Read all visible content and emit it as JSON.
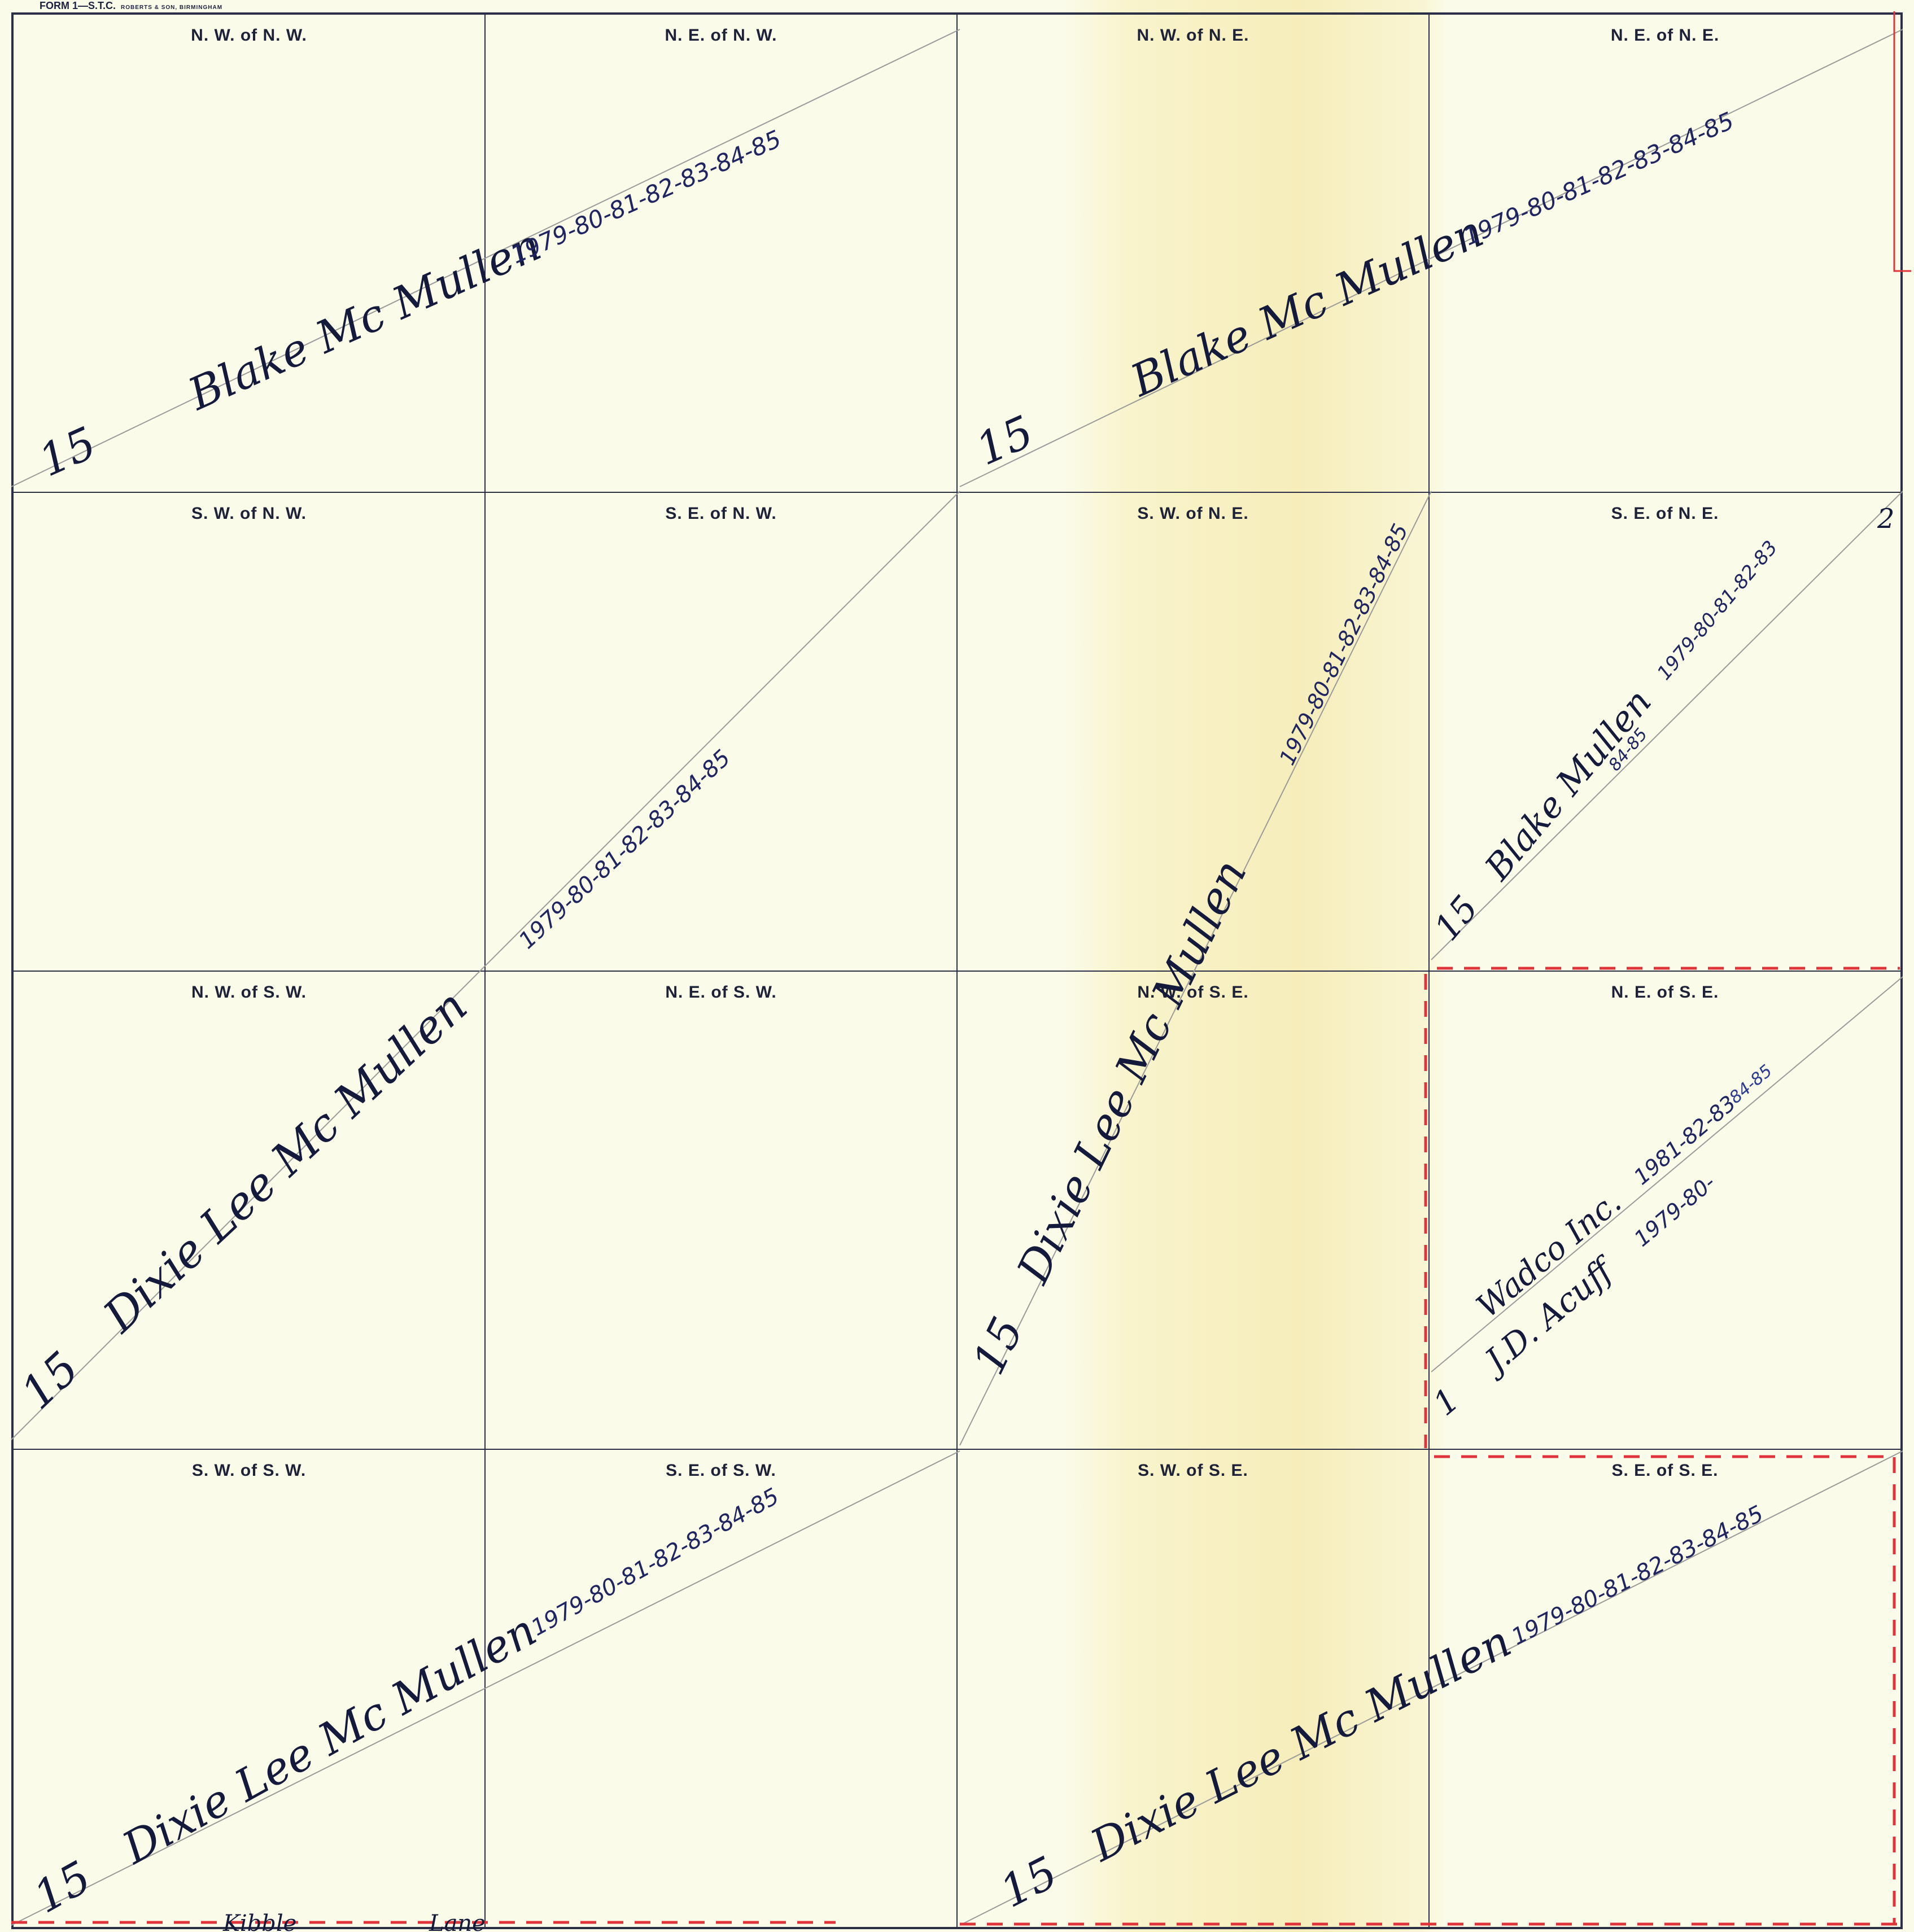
{
  "form_header": {
    "title": "FORM 1—S.T.C.",
    "publisher": "ROBERTS & SON, BIRMINGHAM"
  },
  "quarters": [
    {
      "label": "N. W. of N. W."
    },
    {
      "label": "N. E. of N. W."
    },
    {
      "label": "N. W. of N. E."
    },
    {
      "label": "N. E. of N. E."
    },
    {
      "label": "S. W. of N. W."
    },
    {
      "label": "S. E. of N. W."
    },
    {
      "label": "S. W. of N. E."
    },
    {
      "label": "S. E. of N. E."
    },
    {
      "label": "N. W. of S. W."
    },
    {
      "label": "N. E. of S. W."
    },
    {
      "label": "N. W. of S. E."
    },
    {
      "label": "N. E. of S. E."
    },
    {
      "label": "S. W. of S. W."
    },
    {
      "label": "S. E. of S. W."
    },
    {
      "label": "S. W. of S. E."
    },
    {
      "label": "S. E. of S. E."
    }
  ],
  "entries": {
    "nw_north": {
      "acres": "15",
      "owner": "Blake Mc Mullen",
      "years": "1979-80-81-82-83-84-85"
    },
    "ne_north": {
      "acres": "15",
      "owner": "Blake Mc Mullen",
      "years": "1979-80-81-82-83-84-85"
    },
    "se_nw": {
      "acres": "15",
      "owner": "Dixie Lee Mc Mullen",
      "years": "1979-80-81-82-83-84-85"
    },
    "sw_ne": {
      "acres": "15",
      "owner": "Dixie Lee Mc Mullen",
      "years": "1979-80-81-82-83-84-85"
    },
    "se_ne": {
      "acres": "15",
      "owner": "Blake Mullen",
      "years": "1979-80-81-82-83",
      "extra": "84-85",
      "mark": "2"
    },
    "ne_se_1": {
      "owner": "Wadco Inc.",
      "years": "1981-82-83",
      "extra": "84-85"
    },
    "ne_se_2": {
      "acres": "1",
      "owner": "J.D. Acuff",
      "years": "1979-80-"
    },
    "sw_south": {
      "acres": "15",
      "owner": "Dixie Lee Mc Mullen",
      "years": "1979-80-81-82-83-84-85"
    },
    "se_south": {
      "acres": "15",
      "owner": "Dixie Lee Mc Mullen",
      "years": "1979-80-81-82-83-84-85"
    }
  },
  "bottom_fragments": [
    "Kibble",
    "Lane"
  ]
}
